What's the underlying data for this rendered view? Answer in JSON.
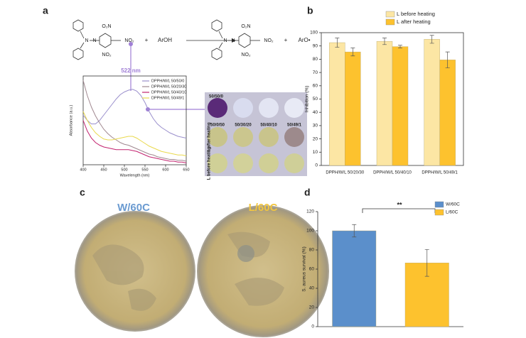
{
  "panel_labels": [
    "a",
    "b",
    "c",
    "d"
  ],
  "scheme": {
    "reactant": {
      "atoms": [
        "N",
        "N"
      ],
      "groups": [
        "O₂N",
        "NO₂",
        "NO₂"
      ]
    },
    "product": {
      "atoms": [
        "N",
        "N"
      ],
      "groups": [
        "O₂N",
        "NO₂",
        "NO₂"
      ]
    },
    "reagent": "ArOH",
    "byproduct": "ArO•",
    "operators": [
      "+",
      "+"
    ],
    "peak_label": "522 nm"
  },
  "plate": {
    "well_labels": [
      "50/50/0",
      "50/0/50",
      "50/30/20",
      "50/40/10",
      "50/49/1"
    ],
    "row_labels": [
      "L after heating",
      "L before heating"
    ]
  },
  "dishes": [
    "W/60C",
    "L/60C"
  ],
  "chart_data": [
    {
      "type": "line",
      "xlabel": "Wavelength (nm)",
      "ylabel": "Absorbance (a.u.)",
      "x": [
        400,
        410,
        420,
        430,
        440,
        450,
        460,
        470,
        480,
        490,
        500,
        510,
        520,
        530,
        540,
        550,
        560,
        570,
        580,
        590,
        600,
        610,
        620,
        630,
        640,
        650
      ],
      "xlim": [
        400,
        650
      ],
      "xticks": [
        400,
        450,
        500,
        550,
        600,
        650
      ],
      "ylim": [
        0,
        1
      ],
      "series": [
        {
          "name": "DPPH/W/L 50/50/0",
          "color": "#9a8fcc",
          "values": [
            0.56,
            0.5,
            0.46,
            0.46,
            0.5,
            0.56,
            0.62,
            0.68,
            0.74,
            0.79,
            0.82,
            0.84,
            0.85,
            0.83,
            0.78,
            0.7,
            0.6,
            0.52,
            0.46,
            0.42,
            0.39,
            0.36,
            0.34,
            0.32,
            0.31,
            0.3
          ]
        },
        {
          "name": "DPPH/W/L 50/20/30",
          "color": "#a08890",
          "values": [
            0.95,
            0.78,
            0.65,
            0.55,
            0.47,
            0.4,
            0.35,
            0.31,
            0.28,
            0.25,
            0.23,
            0.22,
            0.2,
            0.18,
            0.16,
            0.14,
            0.12,
            0.11,
            0.09,
            0.08,
            0.07,
            0.06,
            0.06,
            0.05,
            0.05,
            0.04
          ]
        },
        {
          "name": "DPPH/W/L 50/40/10",
          "color": "#c2216e",
          "values": [
            0.5,
            0.38,
            0.3,
            0.25,
            0.22,
            0.2,
            0.19,
            0.18,
            0.17,
            0.17,
            0.17,
            0.17,
            0.16,
            0.15,
            0.13,
            0.11,
            0.09,
            0.08,
            0.07,
            0.06,
            0.05,
            0.04,
            0.04,
            0.03,
            0.03,
            0.02
          ]
        },
        {
          "name": "DPPH/W/L 50/49/1",
          "color": "#e9d94c",
          "values": [
            0.6,
            0.5,
            0.42,
            0.36,
            0.32,
            0.29,
            0.28,
            0.28,
            0.29,
            0.3,
            0.31,
            0.32,
            0.32,
            0.3,
            0.27,
            0.24,
            0.21,
            0.19,
            0.17,
            0.15,
            0.14,
            0.13,
            0.12,
            0.11,
            0.11,
            0.1
          ]
        }
      ]
    },
    {
      "type": "bar",
      "ylabel": "Inhibition (%)",
      "categories": [
        "DPPH/W/L 50/20/30",
        "DPPH/W/L 50/40/10",
        "DPPH/W/L 50/49/1"
      ],
      "ylim": [
        0,
        100
      ],
      "yticks": [
        0,
        10,
        20,
        30,
        40,
        50,
        60,
        70,
        80,
        90,
        100
      ],
      "series": [
        {
          "name": "L before heating",
          "color": "#fce6a4",
          "values": [
            92.5,
            93.5,
            95
          ],
          "errors": [
            3.5,
            2.5,
            3
          ]
        },
        {
          "name": "L after heating",
          "color": "#fdc22e",
          "values": [
            85.5,
            89.5,
            79.5
          ],
          "errors": [
            3,
            1,
            6
          ]
        }
      ]
    },
    {
      "type": "bar",
      "ylabel": "S. aureus survival (%)",
      "ylim": [
        0,
        120
      ],
      "yticks": [
        0,
        20,
        40,
        60,
        80,
        100,
        120
      ],
      "annotation": "**",
      "series": [
        {
          "name": "W/60C",
          "color": "#5b8fcb",
          "values": [
            100
          ],
          "errors": [
            6.5
          ]
        },
        {
          "name": "L/60C",
          "color": "#fdc22e",
          "values": [
            66.5
          ],
          "errors": [
            14
          ]
        }
      ]
    }
  ]
}
